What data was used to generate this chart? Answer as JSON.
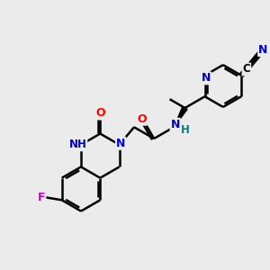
{
  "bg_color": "#ebebeb",
  "atom_colors": {
    "C": "#000000",
    "N": "#0000cc",
    "O": "#ff0000",
    "F": "#cc00cc",
    "H": "#008080"
  },
  "bond_color": "#000000",
  "line_width": 1.8,
  "figsize": [
    3.0,
    3.0
  ],
  "dpi": 100,
  "xlim": [
    0,
    10
  ],
  "ylim": [
    0,
    10
  ]
}
